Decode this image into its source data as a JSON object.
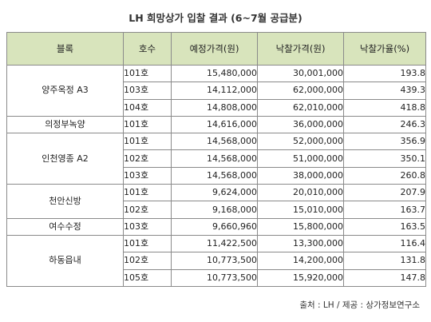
{
  "title": "LH 희망상가 입찰 결과 (6~7월 공급분)",
  "headers": [
    "블록",
    "호수",
    "예정가격(원)",
    "낙찰가격(원)",
    "낙찰가율(%)"
  ],
  "groups": [
    {
      "block": "양주옥정 A3",
      "rows": [
        {
          "unit": "101호",
          "planned": "15,480,000",
          "winning": "30,001,000",
          "rate": "193.8"
        },
        {
          "unit": "103호",
          "planned": "14,112,000",
          "winning": "62,000,000",
          "rate": "439.3"
        },
        {
          "unit": "104호",
          "planned": "14,808,000",
          "winning": "62,010,000",
          "rate": "418.8"
        }
      ]
    },
    {
      "block": "의정부녹양",
      "rows": [
        {
          "unit": "101호",
          "planned": "14,616,000",
          "winning": "36,000,000",
          "rate": "246.3"
        }
      ]
    },
    {
      "block": "인천영종 A2",
      "rows": [
        {
          "unit": "101호",
          "planned": "14,568,000",
          "winning": "52,000,000",
          "rate": "356.9"
        },
        {
          "unit": "102호",
          "planned": "14,568,000",
          "winning": "51,000,000",
          "rate": "350.1"
        },
        {
          "unit": "103호",
          "planned": "14,568,000",
          "winning": "38,000,000",
          "rate": "260.8"
        }
      ]
    },
    {
      "block": "천안신방",
      "rows": [
        {
          "unit": "101호",
          "planned": "9,624,000",
          "winning": "20,010,000",
          "rate": "207.9"
        },
        {
          "unit": "102호",
          "planned": "9,168,000",
          "winning": "15,010,000",
          "rate": "163.7"
        }
      ]
    },
    {
      "block": "여수수정",
      "rows": [
        {
          "unit": "103호",
          "planned": "9,660,960",
          "winning": "15,800,000",
          "rate": "163.5"
        }
      ]
    },
    {
      "block": "하동읍내",
      "rows": [
        {
          "unit": "101호",
          "planned": "11,422,500",
          "winning": "13,300,000",
          "rate": "116.4"
        },
        {
          "unit": "102호",
          "planned": "10,773,500",
          "winning": "14,200,000",
          "rate": "131.8"
        },
        {
          "unit": "105호",
          "planned": "10,773,500",
          "winning": "15,920,000",
          "rate": "147.8"
        }
      ]
    }
  ],
  "source": "출처 : LH / 제공 : 상가정보연구소"
}
